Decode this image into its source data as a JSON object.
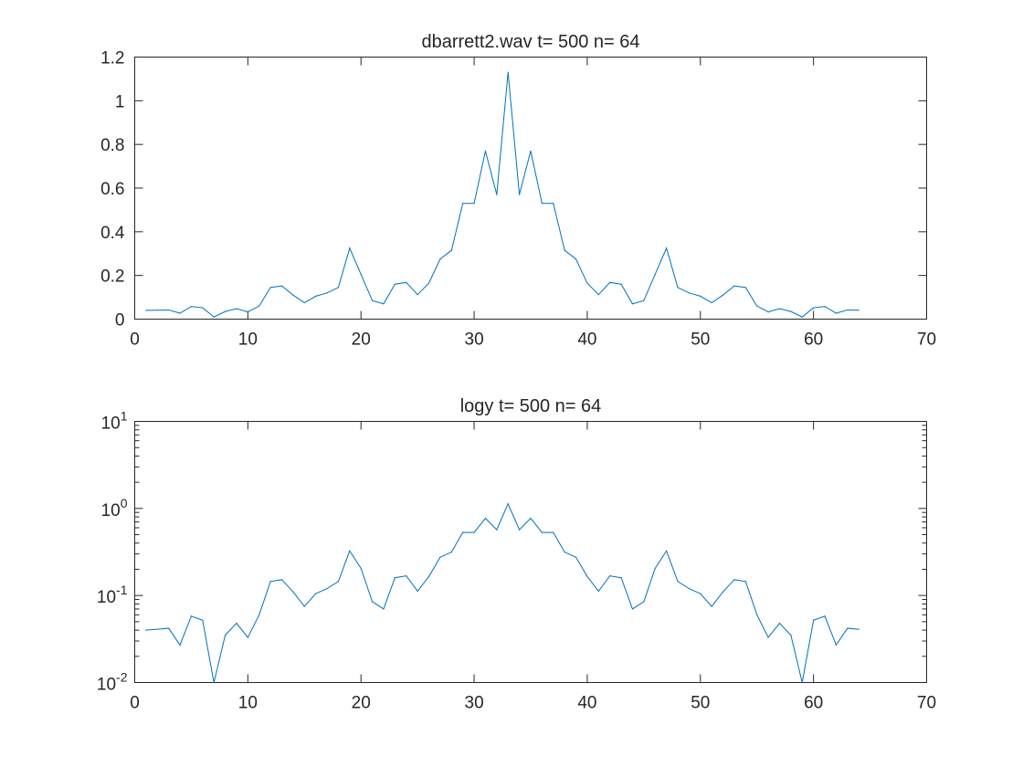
{
  "colors": {
    "series": "#0072BD",
    "axes": "#262626",
    "background": "#ffffff"
  },
  "chart_data": [
    {
      "type": "line",
      "title": "dbarrett2.wav  t= 500 n= 64",
      "xlabel": "",
      "ylabel": "",
      "xscale": "linear",
      "yscale": "linear",
      "xlim": [
        0,
        70
      ],
      "ylim": [
        0,
        1.2
      ],
      "grid": false,
      "xticks": [
        0,
        10,
        20,
        30,
        40,
        50,
        60,
        70
      ],
      "xtick_labels": [
        "0",
        "10",
        "20",
        "30",
        "40",
        "50",
        "60",
        "70"
      ],
      "yticks": [
        0,
        0.2,
        0.4,
        0.6,
        0.8,
        1,
        1.2
      ],
      "ytick_labels": [
        "0",
        "0.2",
        "0.4",
        "0.6",
        "0.8",
        "1",
        "1.2"
      ],
      "x": [
        1,
        2,
        3,
        4,
        5,
        6,
        7,
        8,
        9,
        10,
        11,
        12,
        13,
        14,
        15,
        16,
        17,
        18,
        19,
        20,
        21,
        22,
        23,
        24,
        25,
        26,
        27,
        28,
        29,
        30,
        31,
        32,
        33,
        34,
        35,
        36,
        37,
        38,
        39,
        40,
        41,
        42,
        43,
        44,
        45,
        46,
        47,
        48,
        49,
        50,
        51,
        52,
        53,
        54,
        55,
        56,
        57,
        58,
        59,
        60,
        61,
        62,
        63,
        64
      ],
      "y": [
        0.04,
        0.041,
        0.042,
        0.027,
        0.058,
        0.052,
        0.01,
        0.035,
        0.048,
        0.033,
        0.06,
        0.145,
        0.152,
        0.11,
        0.075,
        0.105,
        0.12,
        0.145,
        0.325,
        0.205,
        0.085,
        0.07,
        0.16,
        0.168,
        0.112,
        0.165,
        0.275,
        0.315,
        0.53,
        0.53,
        0.77,
        0.57,
        1.13,
        0.57,
        0.77,
        0.53,
        0.53,
        0.315,
        0.275,
        0.165,
        0.112,
        0.168,
        0.16,
        0.07,
        0.085,
        0.205,
        0.325,
        0.145,
        0.12,
        0.105,
        0.075,
        0.11,
        0.152,
        0.145,
        0.06,
        0.033,
        0.048,
        0.035,
        0.01,
        0.052,
        0.058,
        0.027,
        0.042,
        0.041
      ]
    },
    {
      "type": "line",
      "title": "logy t= 500 n= 64",
      "xlabel": "",
      "ylabel": "",
      "xscale": "linear",
      "yscale": "log",
      "xlim": [
        0,
        70
      ],
      "ylim": [
        0.01,
        10
      ],
      "grid": false,
      "xticks": [
        0,
        10,
        20,
        30,
        40,
        50,
        60,
        70
      ],
      "xtick_labels": [
        "0",
        "10",
        "20",
        "30",
        "40",
        "50",
        "60",
        "70"
      ],
      "yticks": [
        0.01,
        0.1,
        1,
        10
      ],
      "ytick_labels": [
        {
          "base": "10",
          "exp": "-2"
        },
        {
          "base": "10",
          "exp": "-1"
        },
        {
          "base": "10",
          "exp": "0"
        },
        {
          "base": "10",
          "exp": "1"
        }
      ],
      "x": [
        1,
        2,
        3,
        4,
        5,
        6,
        7,
        8,
        9,
        10,
        11,
        12,
        13,
        14,
        15,
        16,
        17,
        18,
        19,
        20,
        21,
        22,
        23,
        24,
        25,
        26,
        27,
        28,
        29,
        30,
        31,
        32,
        33,
        34,
        35,
        36,
        37,
        38,
        39,
        40,
        41,
        42,
        43,
        44,
        45,
        46,
        47,
        48,
        49,
        50,
        51,
        52,
        53,
        54,
        55,
        56,
        57,
        58,
        59,
        60,
        61,
        62,
        63,
        64
      ],
      "y": [
        0.04,
        0.041,
        0.042,
        0.027,
        0.058,
        0.052,
        0.01,
        0.035,
        0.048,
        0.033,
        0.06,
        0.145,
        0.152,
        0.11,
        0.075,
        0.105,
        0.12,
        0.145,
        0.325,
        0.205,
        0.085,
        0.07,
        0.16,
        0.168,
        0.112,
        0.165,
        0.275,
        0.315,
        0.53,
        0.53,
        0.77,
        0.57,
        1.13,
        0.57,
        0.77,
        0.53,
        0.53,
        0.315,
        0.275,
        0.165,
        0.112,
        0.168,
        0.16,
        0.07,
        0.085,
        0.205,
        0.325,
        0.145,
        0.12,
        0.105,
        0.075,
        0.11,
        0.152,
        0.145,
        0.06,
        0.033,
        0.048,
        0.035,
        0.01,
        0.052,
        0.058,
        0.027,
        0.042,
        0.041
      ]
    }
  ]
}
